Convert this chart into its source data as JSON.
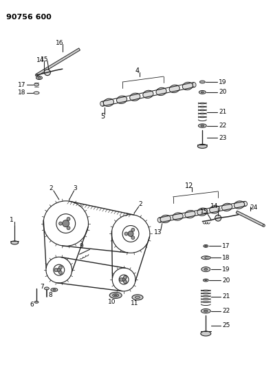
{
  "title": "90756 600",
  "background_color": "#ffffff",
  "line_color": "#222222",
  "text_color": "#000000",
  "fig_width": 3.97,
  "fig_height": 5.33,
  "dpi": 100
}
